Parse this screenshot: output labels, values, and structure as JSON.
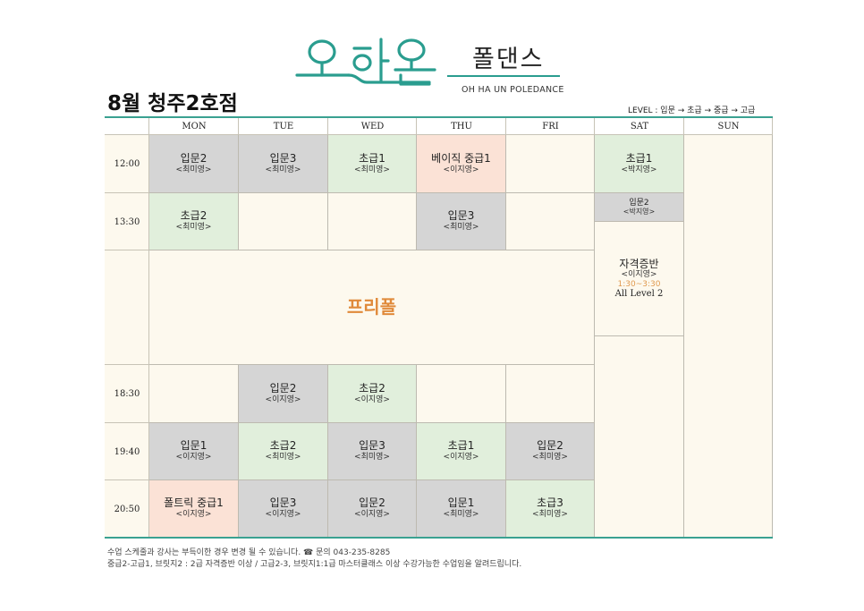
{
  "brand": {
    "logo_text": "오하운",
    "korean_name": "폴댄스",
    "english_name": "OH HA UN POLEDANCE",
    "accent_color": "#2a9d8f"
  },
  "branch_title": "8월 청주2호점",
  "level_legend": "LEVEL : 입문 → 초급 → 중급 → 고급",
  "days": [
    "MON",
    "TUE",
    "WED",
    "THU",
    "FRI",
    "SAT",
    "SUN"
  ],
  "times": [
    "12:00",
    "13:30",
    "18:30",
    "19:40",
    "20:50"
  ],
  "colors": {
    "beginner_intro": "#d5d5d5",
    "basic": "#e1efdc",
    "intermediate": "#fbe2d6",
    "background": "#fdf9ee"
  },
  "classes": {
    "r1200": {
      "mon": {
        "name": "입문2",
        "instructor": "<최미영>"
      },
      "tue": {
        "name": "입문3",
        "instructor": "<최미영>"
      },
      "wed": {
        "name": "초급1",
        "instructor": "<최미영>"
      },
      "thu": {
        "name": "베이직 중급1",
        "instructor": "<이지영>"
      },
      "sat": {
        "name": "초급1",
        "instructor": "<박지영>"
      }
    },
    "r1330": {
      "mon": {
        "name": "초급2",
        "instructor": "<최미영>"
      },
      "thu": {
        "name": "입문3",
        "instructor": "<최미영>"
      },
      "sat": {
        "name": "입문2",
        "instructor": "<박지영>"
      }
    },
    "free_pole": "프리폴",
    "sat_cert": {
      "name": "자격증반",
      "instructor": "<이지영>",
      "time": "1:30~3:30",
      "level": "All Level 2"
    },
    "r1830": {
      "tue": {
        "name": "입문2",
        "instructor": "<이지영>"
      },
      "wed": {
        "name": "초급2",
        "instructor": "<이지영>"
      }
    },
    "r1940": {
      "mon": {
        "name": "입문1",
        "instructor": "<이지영>"
      },
      "tue": {
        "name": "초급2",
        "instructor": "<최미영>"
      },
      "wed": {
        "name": "입문3",
        "instructor": "<최미영>"
      },
      "thu": {
        "name": "초급1",
        "instructor": "<이지영>"
      },
      "fri": {
        "name": "입문2",
        "instructor": "<최미영>"
      }
    },
    "r2050": {
      "mon": {
        "name": "폴트릭 중급1",
        "instructor": "<이지영>"
      },
      "tue": {
        "name": "입문3",
        "instructor": "<이지영>"
      },
      "wed": {
        "name": "입문2",
        "instructor": "<이지영>"
      },
      "thu": {
        "name": "입문1",
        "instructor": "<최미영>"
      },
      "fri": {
        "name": "초급3",
        "instructor": "<최미영>"
      }
    }
  },
  "footer": {
    "line1": "수업 스케줄과 강사는 부득이한 경우 변경 될 수 있습니다. ☎ 문의 043-235-8285",
    "line2": "중급2-고급1, 브릿지2 : 2급 자격증반 이상 / 고급2-3, 브릿지1:1급 마스터클래스 이상 수강가능한 수업임을 알려드립니다."
  }
}
